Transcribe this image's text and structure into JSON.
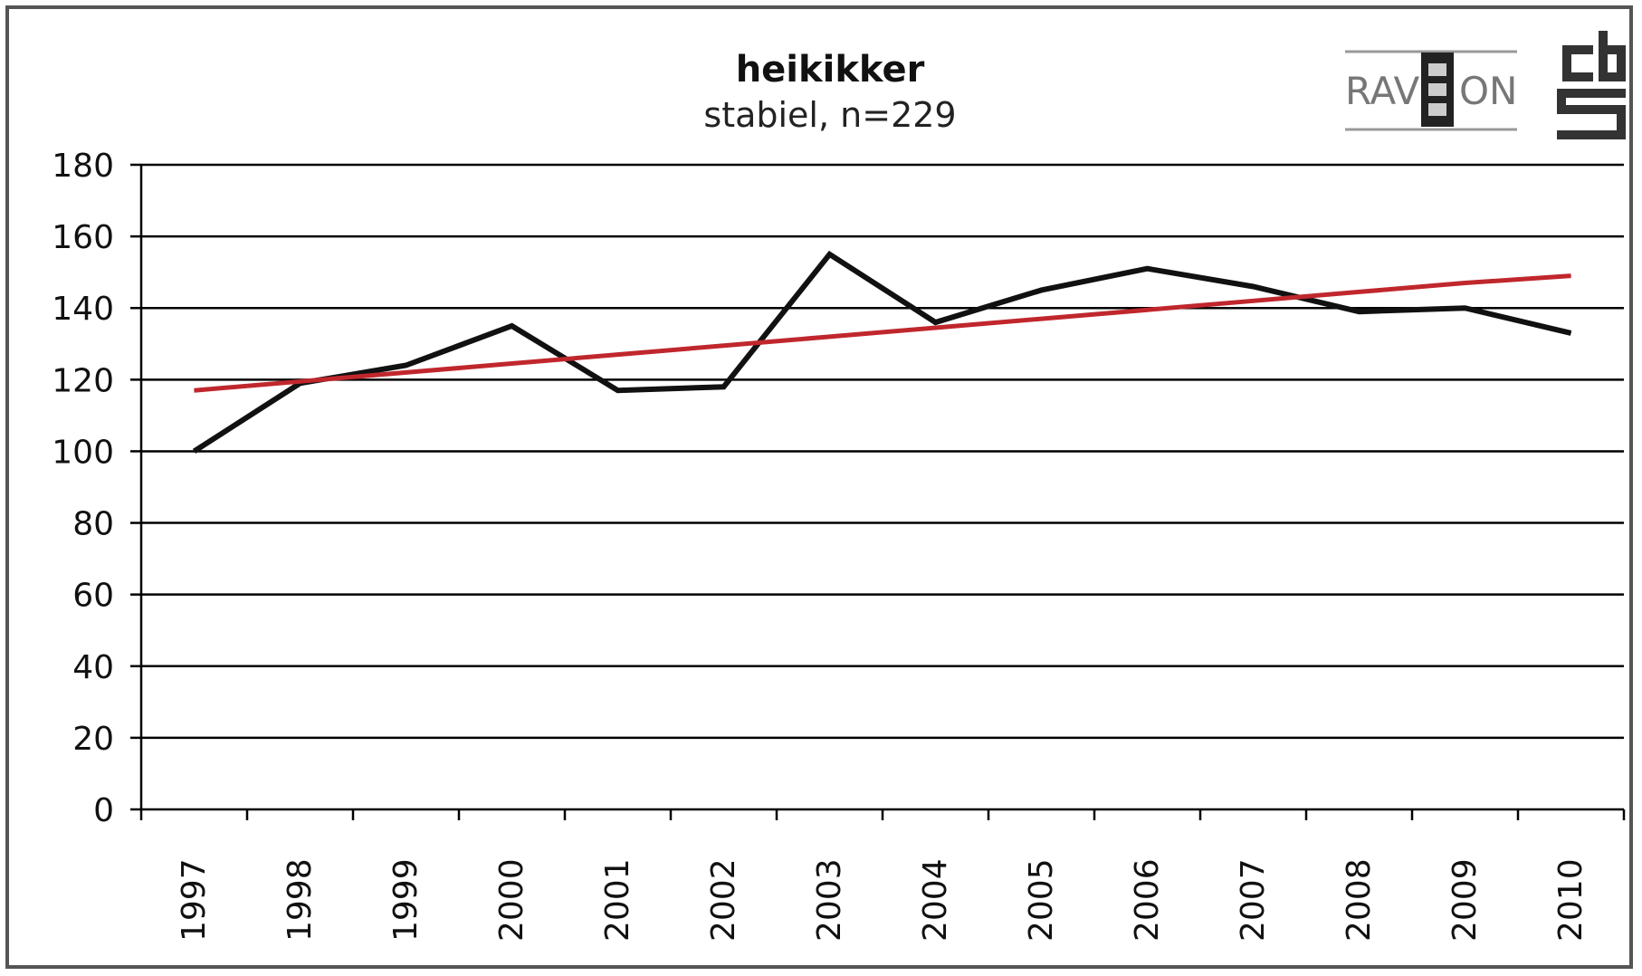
{
  "chart_data": {
    "type": "line",
    "title": "heikikker",
    "subtitle": "stabiel, n=229",
    "categories": [
      "1997",
      "1998",
      "1999",
      "2000",
      "2001",
      "2002",
      "2003",
      "2004",
      "2005",
      "2006",
      "2007",
      "2008",
      "2009",
      "2010"
    ],
    "series": [
      {
        "values": [
          100,
          119,
          124,
          135,
          117,
          118,
          155,
          136,
          145,
          151,
          146,
          139,
          140,
          133
        ],
        "color": "#111111"
      },
      {
        "values": [
          117,
          119.5,
          122,
          124.5,
          127,
          129.5,
          132,
          134.5,
          137,
          139.5,
          142,
          144.5,
          147,
          149
        ],
        "color": "#c0272d"
      }
    ],
    "ylim": [
      0,
      180
    ],
    "yticks": [
      "0",
      "20",
      "40",
      "60",
      "80",
      "100",
      "120",
      "140",
      "160",
      "180"
    ],
    "grid": true,
    "xlabel": "",
    "ylabel": ""
  },
  "logos": {
    "ravon_left": "RAV",
    "ravon_right": "ON",
    "cbs": "cbs"
  }
}
